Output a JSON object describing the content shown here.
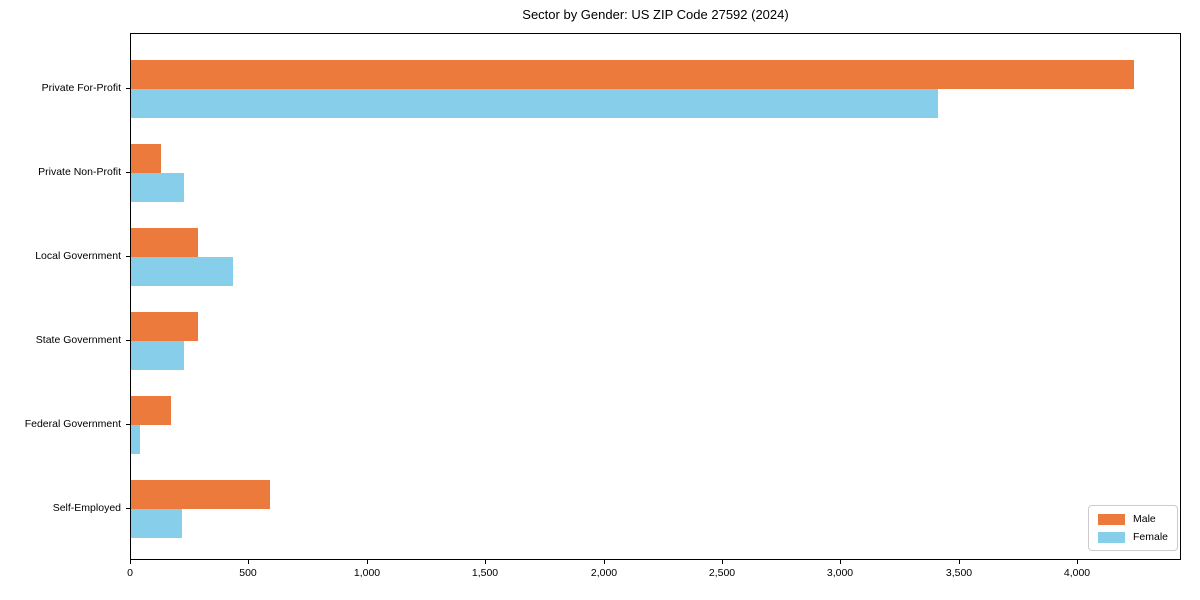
{
  "chart_data": {
    "type": "bar",
    "orientation": "horizontal",
    "title": "Sector by Gender: US ZIP Code 27592 (2024)",
    "categories": [
      "Private For-Profit",
      "Private Non-Profit",
      "Local Government",
      "State Government",
      "Federal Government",
      "Self-Employed"
    ],
    "series": [
      {
        "name": "Male",
        "color": "#EC7A3C",
        "values": [
          4235,
          128,
          282,
          281,
          167,
          589
        ]
      },
      {
        "name": "Female",
        "color": "#87CEEB",
        "values": [
          3406,
          222,
          429,
          224,
          40,
          215
        ]
      }
    ],
    "xlabel": "",
    "ylabel": "",
    "xlim": [
      0,
      4430
    ],
    "x_tick_values": [
      0,
      500,
      1000,
      1500,
      2000,
      2500,
      3000,
      3500,
      4000
    ],
    "x_tick_labels": [
      "0",
      "500",
      "1,000",
      "1,500",
      "2,000",
      "2,500",
      "3,000",
      "3,500",
      "4,000"
    ],
    "legend_position": "lower right",
    "grid": false
  }
}
